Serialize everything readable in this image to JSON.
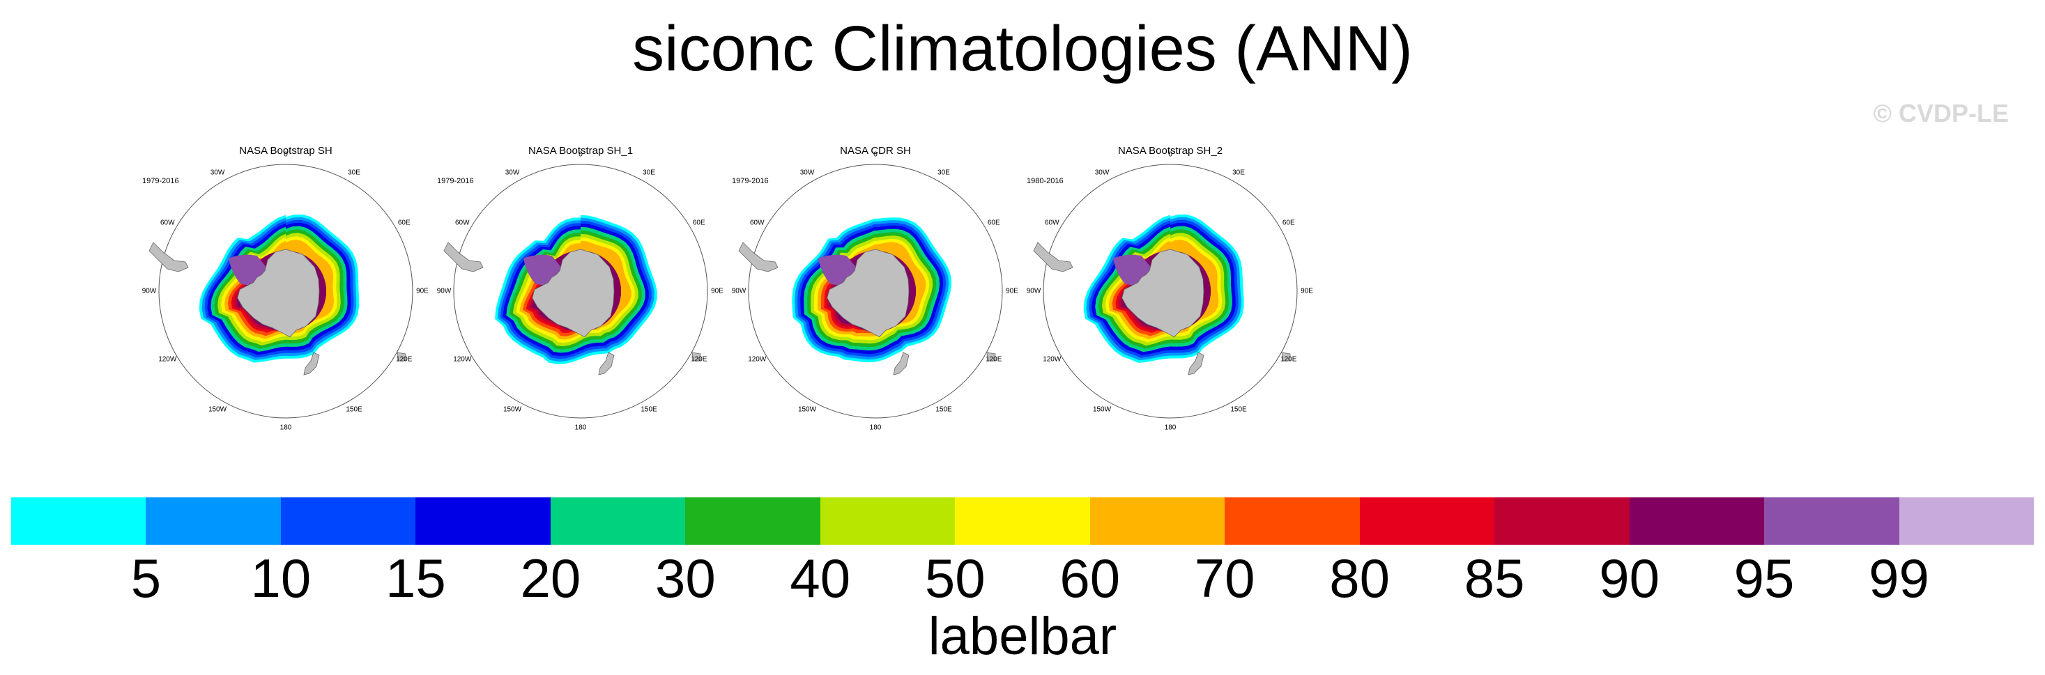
{
  "figure": {
    "title": "siconc Climatologies (ANN)",
    "watermark": "© CVDP-LE"
  },
  "chart_data": {
    "type": "heatmap",
    "projection": "south-polar-stereographic",
    "variable": "siconc",
    "season": "ANN",
    "panels": [
      {
        "title": "NASA Bootstrap SH",
        "period": "1979-2016"
      },
      {
        "title": "NASA Bootstrap SH_1",
        "period": "1979-2016"
      },
      {
        "title": "NASA CDR SH",
        "period": "1979-2016"
      },
      {
        "title": "NASA Bootstrap SH_2",
        "period": "1980-2016"
      }
    ],
    "longitude_labels": [
      "0",
      "30E",
      "60E",
      "90E",
      "120E",
      "150E",
      "180",
      "150W",
      "120W",
      "90W",
      "60W",
      "30W"
    ],
    "colorbar": {
      "title": "labelbar",
      "levels": [
        "5",
        "10",
        "15",
        "20",
        "30",
        "40",
        "50",
        "60",
        "70",
        "80",
        "85",
        "90",
        "95",
        "99"
      ],
      "colors": [
        "#00ffff",
        "#0096ff",
        "#0046ff",
        "#0000e6",
        "#00d27d",
        "#1eb41e",
        "#b9e600",
        "#fff500",
        "#ffb400",
        "#ff4b00",
        "#e6001e",
        "#be0032",
        "#82005f",
        "#8c50aa",
        "#c8aadc"
      ]
    },
    "land_color": "#bfbfbf"
  }
}
